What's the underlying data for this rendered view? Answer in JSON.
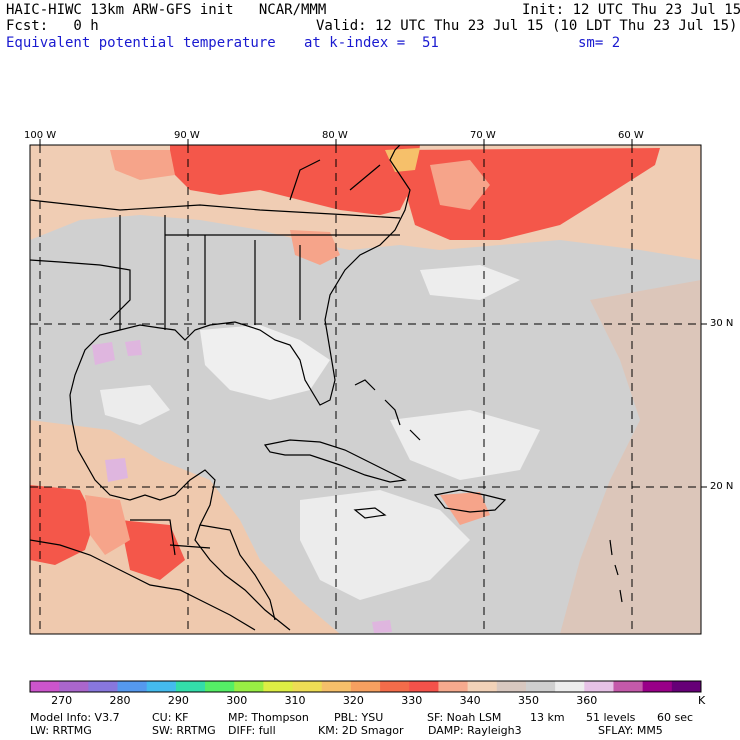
{
  "header": {
    "model": "HAIC-HIWC 13km ARW-GFS init   NCAR/MMM",
    "init": "Init: 12 UTC Thu 23 Jul 15",
    "fcst": "Fcst:   0 h",
    "valid": "Valid: 12 UTC Thu 23 Jul 15 (10 LDT Thu 23 Jul 15)",
    "field": "Equivalent potential temperature",
    "level": "at k-index =  51",
    "smooth": "sm= 2"
  },
  "map": {
    "lon_labels": [
      "100 W",
      "90 W",
      "80 W",
      "70 W",
      "60 W"
    ],
    "lat_labels": [
      "30 N",
      "20 N"
    ]
  },
  "colorbar": {
    "colors": [
      "#cc55cc",
      "#aa66cc",
      "#8877dd",
      "#5599ee",
      "#44bbee",
      "#33ddaa",
      "#55ee66",
      "#99ee44",
      "#ddee44",
      "#eedd55",
      "#f6c06a",
      "#f6a060",
      "#f46c4a",
      "#f4524a",
      "#f6aa8e",
      "#f2d2b8",
      "#d8c8c0",
      "#cfcfcf",
      "#ededed",
      "#e6c2e6",
      "#c45aaa",
      "#990088",
      "#660077"
    ],
    "tick_labels": [
      "270",
      "280",
      "290",
      "300",
      "310",
      "320",
      "330",
      "340",
      "350",
      "360"
    ],
    "unit": "K"
  },
  "footer": {
    "line1": [
      "Model Info: V3.7",
      "CU: KF",
      "MP: Thompson",
      "PBL: YSU",
      "SF: Noah LSM",
      "13 km",
      "51 levels",
      "60 sec"
    ],
    "line2": [
      "LW: RRTMG",
      "SW: RRTMG",
      "DIFF: full",
      "KM: 2D Smagor",
      "DAMP: Rayleigh3",
      "SFLAY: MM5"
    ]
  }
}
